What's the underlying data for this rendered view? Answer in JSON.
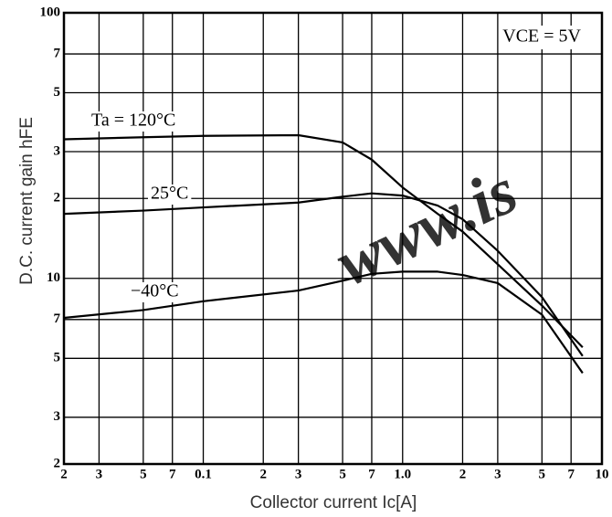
{
  "chart_data": {
    "type": "line",
    "x_label": "Collector current   Ic[A]",
    "y_label": "D.C. current gain   hFE",
    "annotation": "VCE = 5V",
    "watermark": "www.is",
    "log_x": true,
    "log_y": true,
    "grid": true,
    "xlim": [
      0.02,
      10
    ],
    "ylim": [
      2,
      100
    ],
    "xticks": [
      {
        "value": 0.02,
        "label": "2"
      },
      {
        "value": 0.03,
        "label": "3"
      },
      {
        "value": 0.05,
        "label": "5"
      },
      {
        "value": 0.07,
        "label": "7"
      },
      0.1,
      {
        "value": 0.2,
        "label": "2"
      },
      {
        "value": 0.3,
        "label": "3"
      },
      {
        "value": 0.5,
        "label": "5"
      },
      {
        "value": 0.7,
        "label": "7"
      },
      {
        "value": 1,
        "label": "1.0"
      },
      {
        "value": 2,
        "label": "2"
      },
      {
        "value": 3,
        "label": "3"
      },
      {
        "value": 5,
        "label": "5"
      },
      {
        "value": 7,
        "label": "7"
      },
      10
    ],
    "yticks": [
      {
        "value": 2,
        "label": "2"
      },
      {
        "value": 3,
        "label": "3"
      },
      {
        "value": 5,
        "label": "5"
      },
      {
        "value": 7,
        "label": "7"
      },
      10,
      {
        "value": 20,
        "label": "2"
      },
      {
        "value": 30,
        "label": "3"
      },
      {
        "value": 50,
        "label": "5"
      },
      {
        "value": 70,
        "label": "7"
      },
      100
    ],
    "x": [
      0.02,
      0.05,
      0.1,
      0.3,
      0.5,
      0.7,
      1,
      1.5,
      2,
      3,
      5,
      8
    ],
    "series": [
      {
        "name": "Ta = 120°C",
        "color": "#000000",
        "values": [
          33.4,
          34,
          34.4,
          34.6,
          32.5,
          28,
          22,
          17.5,
          15,
          11.3,
          7.9,
          5.5
        ]
      },
      {
        "name": "25°C",
        "color": "#000000",
        "values": [
          17.5,
          18,
          18.5,
          19.3,
          20.3,
          20.9,
          20.5,
          18.8,
          16.7,
          12.7,
          8.5,
          5.1
        ]
      },
      {
        "name": "−40°C",
        "color": "#000000",
        "values": [
          7.1,
          7.6,
          8.2,
          9.0,
          9.8,
          10.4,
          10.6,
          10.6,
          10.3,
          9.6,
          7.3,
          4.4
        ]
      }
    ]
  }
}
